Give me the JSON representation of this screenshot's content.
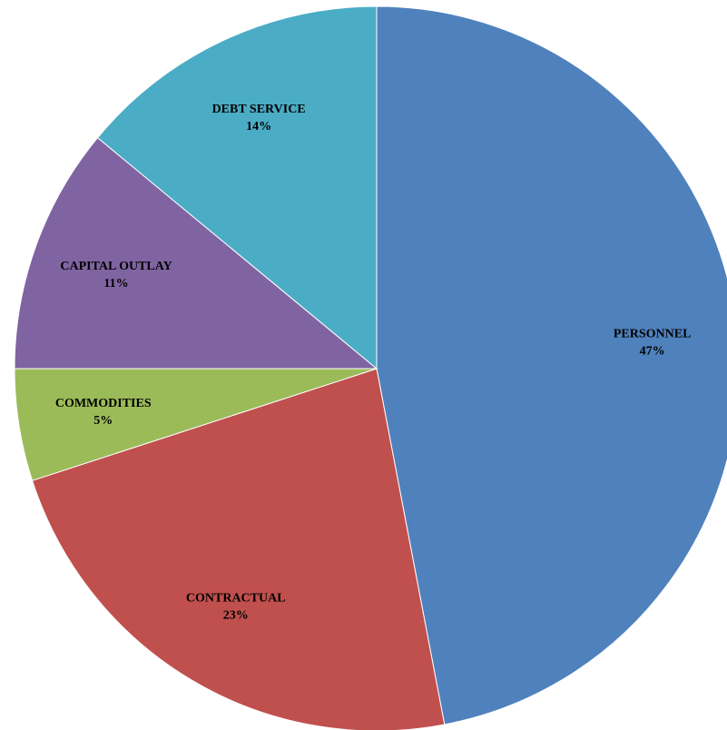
{
  "chart_data": {
    "type": "pie",
    "categories": [
      "PERSONNEL",
      "CONTRACTUAL",
      "COMMODITIES",
      "CAPITAL OUTLAY",
      "DEBT SERVICE"
    ],
    "values": [
      47,
      23,
      5,
      11,
      14
    ],
    "value_labels": [
      "47%",
      "23%",
      "5%",
      "11%",
      "14%"
    ],
    "colors": [
      "#4f81bd",
      "#c0504d",
      "#9bbb59",
      "#8064a2",
      "#4bacc6"
    ]
  }
}
